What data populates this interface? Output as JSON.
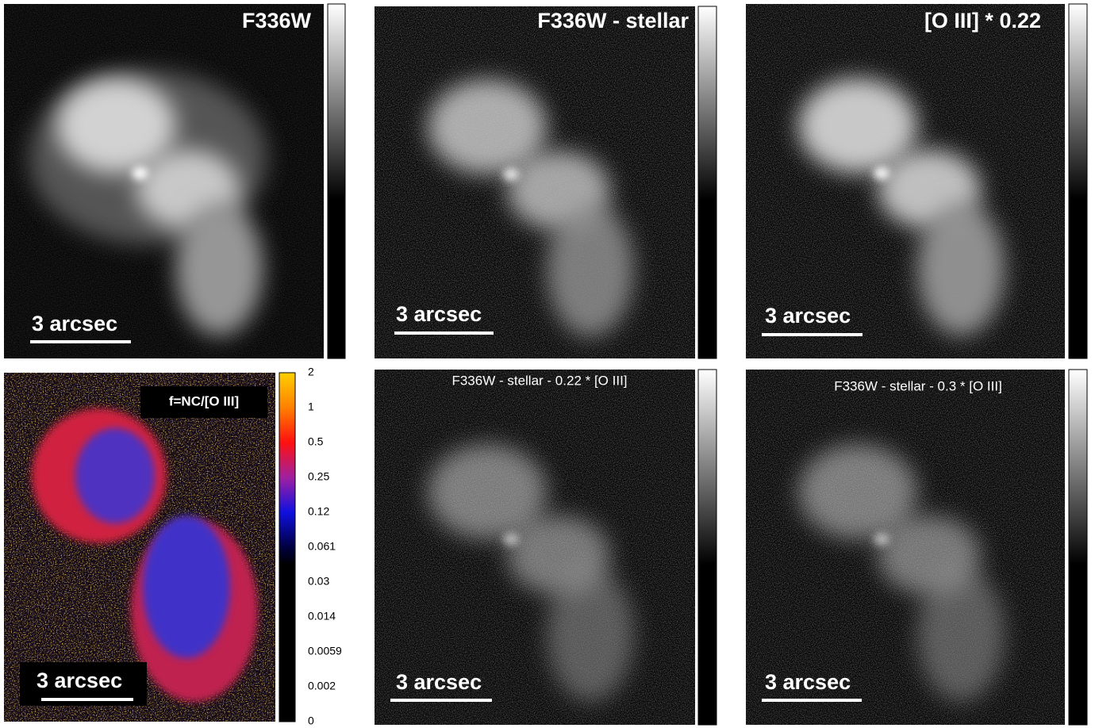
{
  "panels": [
    {
      "title": "F336W",
      "scale_bar": "3 arcsec"
    },
    {
      "title": "F336W - stellar",
      "scale_bar": "3 arcsec"
    },
    {
      "title": "[O III] * 0.22",
      "scale_bar": "3 arcsec"
    },
    {
      "title": "f=NC/[O III]",
      "scale_bar": "3 arcsec",
      "colorbar_ticks": [
        2,
        1,
        0.5,
        0.25,
        0.12,
        0.061,
        0.03,
        0.014,
        0.0059,
        0.002,
        0
      ]
    },
    {
      "title": "F336W - stellar - 0.22 * [O III]",
      "scale_bar": "3 arcsec"
    },
    {
      "title": "F336W - stellar - 0.3 * [O III]",
      "scale_bar": "3 arcsec"
    }
  ]
}
